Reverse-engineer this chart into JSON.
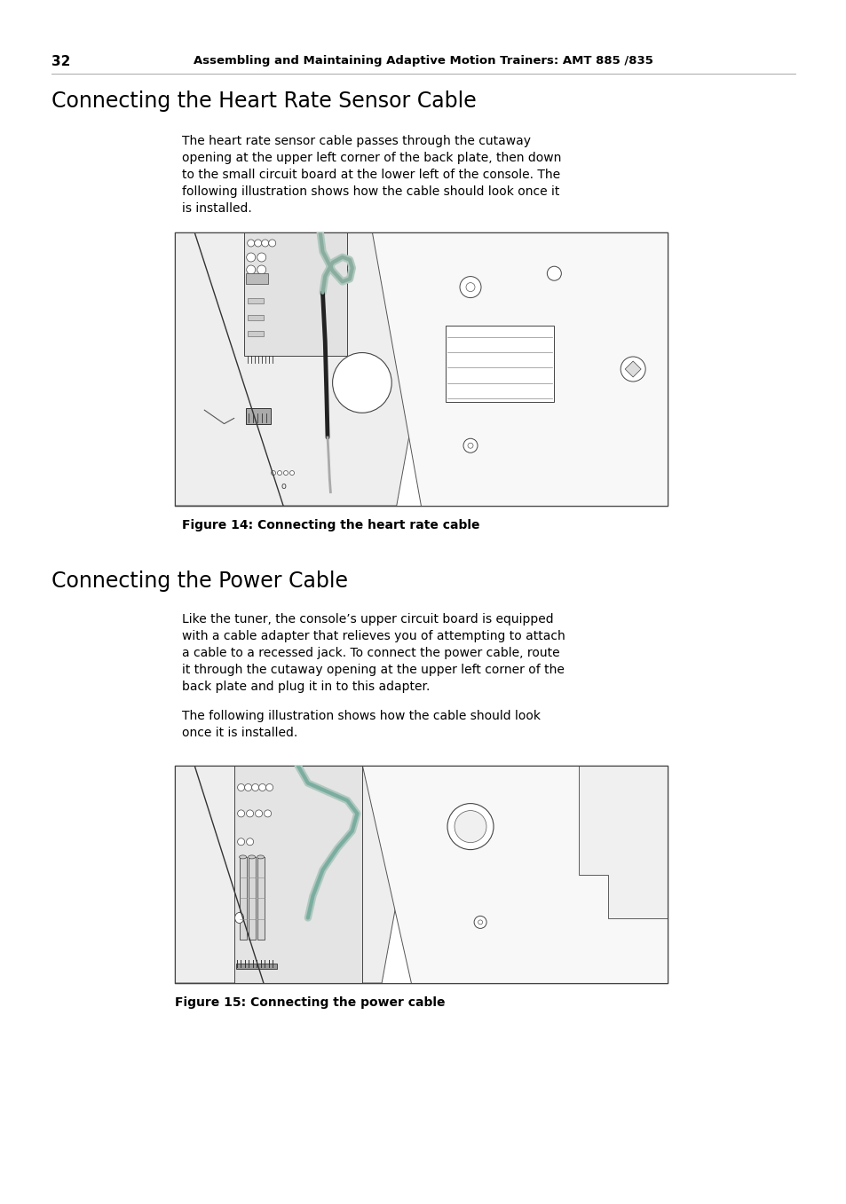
{
  "page_number": "32",
  "header_text": "Assembling and Maintaining Adaptive Motion Trainers: AMT 885 /835",
  "section1_title": "Connecting the Heart Rate Sensor Cable",
  "section1_body": "The heart rate sensor cable passes through the cutaway opening at the upper left corner of the back plate, then down to the small circuit board at the lower left of the console. The following illustration shows how the cable should look once it is installed.",
  "figure1_caption": "Figure 14: Connecting the heart rate cable",
  "section2_title": "Connecting the Power Cable",
  "section2_body1": "Like the tuner, the console’s upper circuit board is equipped with a cable adapter that relieves you of attempting to attach a cable to a recessed jack. To connect the power cable, route it through the cutaway opening at the upper left corner of the back plate and plug it in to this adapter.",
  "section2_body2": "The following illustration shows how the cable should look once it is installed.",
  "figure2_caption": "Figure 15: Connecting the power cable",
  "bg_color": "#ffffff",
  "text_color": "#000000",
  "header_color": "#000000"
}
